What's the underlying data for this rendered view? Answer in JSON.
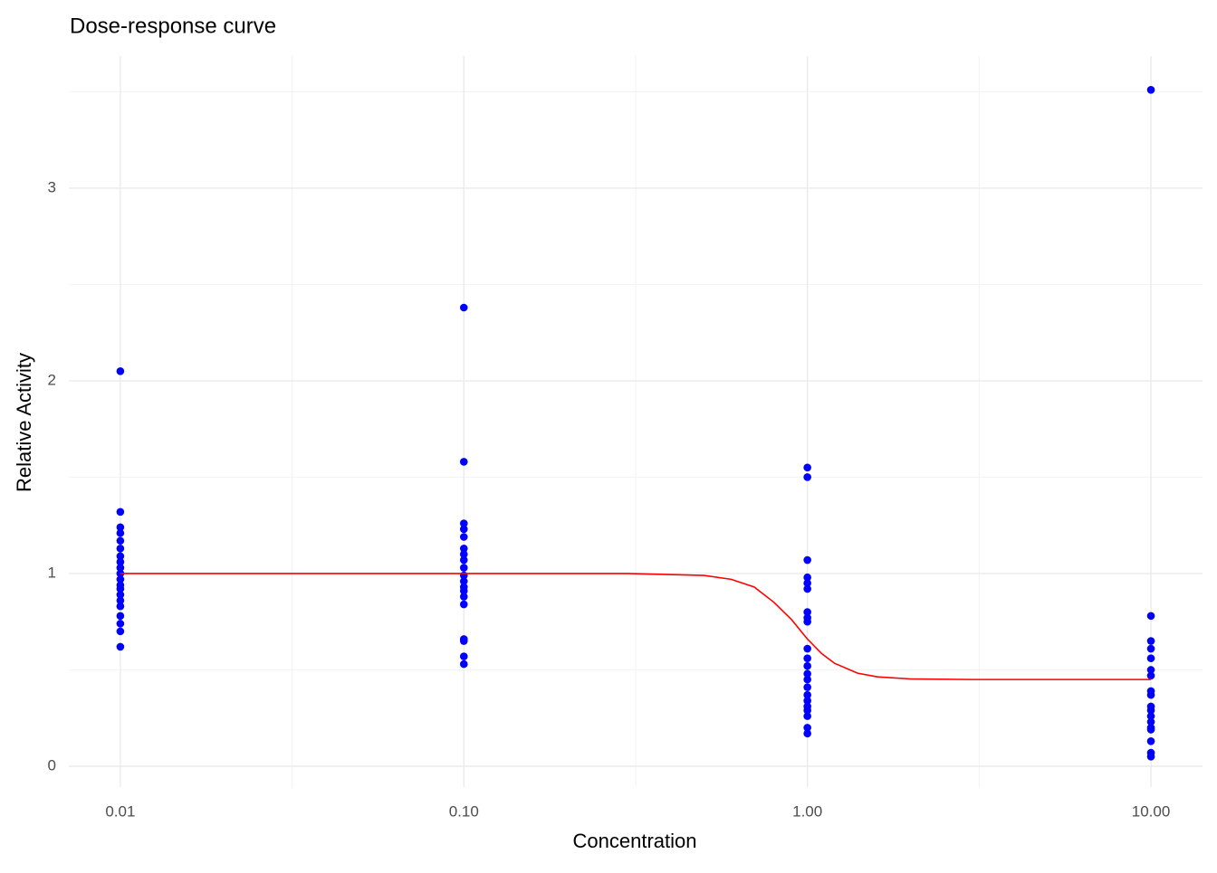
{
  "chart_data": {
    "type": "scatter",
    "title": "Dose-response curve",
    "x_label": "Concentration",
    "y_label": "Relative Activity",
    "x_scale": "log",
    "grid": true,
    "xlim": [
      0.00708,
      14.13
    ],
    "ylim": [
      -0.108,
      3.685
    ],
    "xticks": [
      {
        "value": 0.01,
        "label": "0.01"
      },
      {
        "value": 0.1,
        "label": "0.10"
      },
      {
        "value": 1,
        "label": "1.00"
      },
      {
        "value": 10,
        "label": "10.00"
      }
    ],
    "yticks": [
      0,
      1,
      2,
      3
    ],
    "series": [
      {
        "type": "scatter",
        "color": "#0000ff",
        "x": [
          0.01,
          0.01,
          0.01,
          0.01,
          0.01,
          0.01,
          0.01,
          0.01,
          0.01,
          0.01,
          0.01,
          0.01,
          0.01,
          0.01,
          0.01,
          0.01,
          0.01,
          0.01,
          0.01,
          0.01,
          0.1,
          0.1,
          0.1,
          0.1,
          0.1,
          0.1,
          0.1,
          0.1,
          0.1,
          0.1,
          0.1,
          0.1,
          0.1,
          0.1,
          0.1,
          0.1,
          0.1,
          0.1,
          0.1,
          1,
          1,
          1,
          1,
          1,
          1,
          1,
          1,
          1,
          1,
          1,
          1,
          1,
          1,
          1,
          1,
          1,
          1,
          1,
          1,
          1,
          1,
          10,
          10,
          10,
          10,
          10,
          10,
          10,
          10,
          10,
          10,
          10,
          10,
          10,
          10,
          10,
          10,
          10,
          10
        ],
        "values": [
          2.05,
          1.32,
          1.24,
          1.21,
          1.17,
          1.13,
          1.09,
          1.06,
          1.03,
          1.0,
          0.97,
          0.94,
          0.92,
          0.89,
          0.86,
          0.83,
          0.78,
          0.74,
          0.7,
          0.62,
          2.38,
          1.58,
          1.26,
          1.23,
          1.19,
          1.13,
          1.1,
          1.07,
          1.03,
          0.99,
          0.96,
          0.93,
          0.91,
          0.88,
          0.84,
          0.66,
          0.65,
          0.57,
          0.53,
          1.55,
          1.5,
          1.07,
          0.98,
          0.95,
          0.92,
          0.8,
          0.77,
          0.75,
          0.61,
          0.56,
          0.52,
          0.48,
          0.45,
          0.41,
          0.37,
          0.34,
          0.31,
          0.29,
          0.26,
          0.2,
          0.17,
          3.51,
          0.78,
          0.65,
          0.61,
          0.56,
          0.5,
          0.47,
          0.39,
          0.37,
          0.31,
          0.29,
          0.26,
          0.23,
          0.2,
          0.19,
          0.13,
          0.07,
          0.05
        ]
      },
      {
        "type": "line",
        "color": "#ff0000",
        "x": [
          0.01,
          0.1,
          0.3,
          0.5,
          0.6,
          0.7,
          0.8,
          0.9,
          1,
          1.1,
          1.2,
          1.4,
          1.6,
          2,
          3,
          5,
          10
        ],
        "values": [
          1.0,
          1.0,
          1.0,
          0.99,
          0.97,
          0.93,
          0.85,
          0.76,
          0.66,
          0.585,
          0.534,
          0.483,
          0.464,
          0.453,
          0.45,
          0.45,
          0.45
        ]
      }
    ]
  }
}
